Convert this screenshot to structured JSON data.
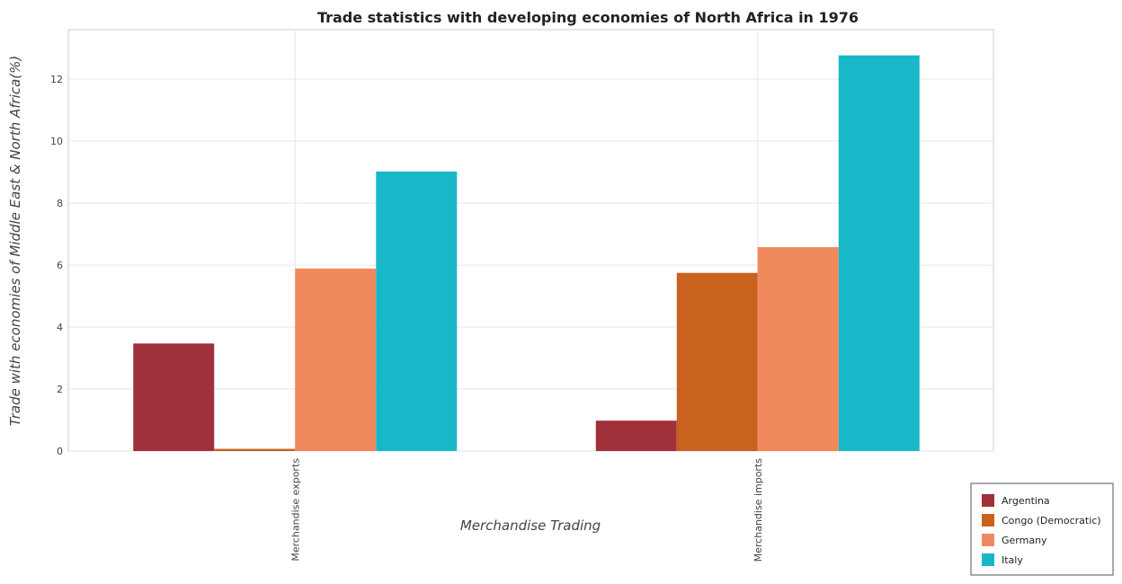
{
  "chart_data": {
    "type": "bar",
    "title": "Trade statistics with developing economies of North Africa in 1976",
    "xlabel": "Merchandise Trading",
    "ylabel": "Trade with economies of Middle East & North Africa(%)",
    "categories": [
      "Merchandise exports",
      "Merchandise imports"
    ],
    "ylim": [
      0,
      13.6
    ],
    "yticks": [
      0,
      2,
      4,
      6,
      8,
      10,
      12
    ],
    "grid": true,
    "legend_position": "bottom-right",
    "series": [
      {
        "name": "Argentina",
        "color": "#a0303a",
        "values": [
          3.47,
          0.98
        ]
      },
      {
        "name": "Congo (Democratic)",
        "color": "#c8621e",
        "values": [
          0.07,
          5.75
        ]
      },
      {
        "name": "Germany",
        "color": "#f08a5d",
        "values": [
          5.89,
          6.58
        ]
      },
      {
        "name": "Italy",
        "color": "#18b8c8",
        "values": [
          9.02,
          12.77
        ]
      }
    ]
  }
}
